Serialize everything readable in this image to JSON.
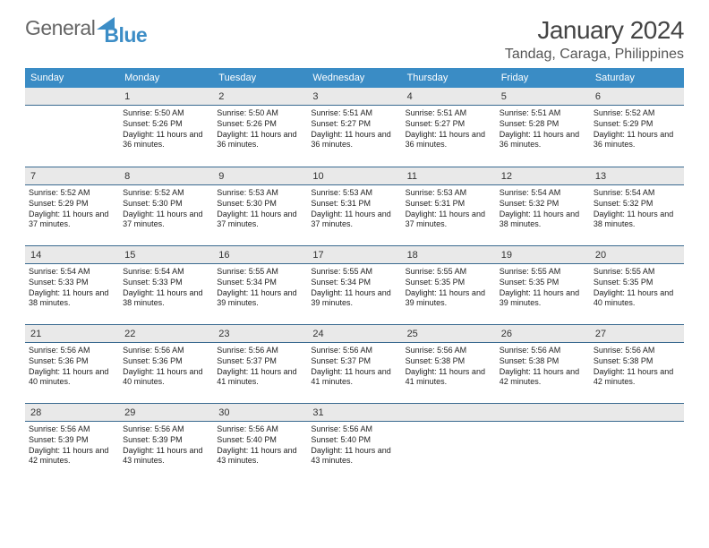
{
  "logo": {
    "left": "General",
    "right": "Blue"
  },
  "header": {
    "title": "January 2024",
    "location": "Tandag, Caraga, Philippines"
  },
  "weekdays": [
    "Sunday",
    "Monday",
    "Tuesday",
    "Wednesday",
    "Thursday",
    "Friday",
    "Saturday"
  ],
  "colors": {
    "header_bg": "#3a8cc5",
    "rule": "#3a6a90",
    "daynum_bg": "#e9e9e9"
  },
  "labels": {
    "sunrise_prefix": "Sunrise: ",
    "sunset_prefix": "Sunset: ",
    "daylight_prefix": "Daylight: "
  },
  "days": [
    {
      "n": "",
      "sunrise": "",
      "sunset": "",
      "daylight": ""
    },
    {
      "n": "1",
      "sunrise": "5:50 AM",
      "sunset": "5:26 PM",
      "daylight": "11 hours and 36 minutes."
    },
    {
      "n": "2",
      "sunrise": "5:50 AM",
      "sunset": "5:26 PM",
      "daylight": "11 hours and 36 minutes."
    },
    {
      "n": "3",
      "sunrise": "5:51 AM",
      "sunset": "5:27 PM",
      "daylight": "11 hours and 36 minutes."
    },
    {
      "n": "4",
      "sunrise": "5:51 AM",
      "sunset": "5:27 PM",
      "daylight": "11 hours and 36 minutes."
    },
    {
      "n": "5",
      "sunrise": "5:51 AM",
      "sunset": "5:28 PM",
      "daylight": "11 hours and 36 minutes."
    },
    {
      "n": "6",
      "sunrise": "5:52 AM",
      "sunset": "5:29 PM",
      "daylight": "11 hours and 36 minutes."
    },
    {
      "n": "7",
      "sunrise": "5:52 AM",
      "sunset": "5:29 PM",
      "daylight": "11 hours and 37 minutes."
    },
    {
      "n": "8",
      "sunrise": "5:52 AM",
      "sunset": "5:30 PM",
      "daylight": "11 hours and 37 minutes."
    },
    {
      "n": "9",
      "sunrise": "5:53 AM",
      "sunset": "5:30 PM",
      "daylight": "11 hours and 37 minutes."
    },
    {
      "n": "10",
      "sunrise": "5:53 AM",
      "sunset": "5:31 PM",
      "daylight": "11 hours and 37 minutes."
    },
    {
      "n": "11",
      "sunrise": "5:53 AM",
      "sunset": "5:31 PM",
      "daylight": "11 hours and 37 minutes."
    },
    {
      "n": "12",
      "sunrise": "5:54 AM",
      "sunset": "5:32 PM",
      "daylight": "11 hours and 38 minutes."
    },
    {
      "n": "13",
      "sunrise": "5:54 AM",
      "sunset": "5:32 PM",
      "daylight": "11 hours and 38 minutes."
    },
    {
      "n": "14",
      "sunrise": "5:54 AM",
      "sunset": "5:33 PM",
      "daylight": "11 hours and 38 minutes."
    },
    {
      "n": "15",
      "sunrise": "5:54 AM",
      "sunset": "5:33 PM",
      "daylight": "11 hours and 38 minutes."
    },
    {
      "n": "16",
      "sunrise": "5:55 AM",
      "sunset": "5:34 PM",
      "daylight": "11 hours and 39 minutes."
    },
    {
      "n": "17",
      "sunrise": "5:55 AM",
      "sunset": "5:34 PM",
      "daylight": "11 hours and 39 minutes."
    },
    {
      "n": "18",
      "sunrise": "5:55 AM",
      "sunset": "5:35 PM",
      "daylight": "11 hours and 39 minutes."
    },
    {
      "n": "19",
      "sunrise": "5:55 AM",
      "sunset": "5:35 PM",
      "daylight": "11 hours and 39 minutes."
    },
    {
      "n": "20",
      "sunrise": "5:55 AM",
      "sunset": "5:35 PM",
      "daylight": "11 hours and 40 minutes."
    },
    {
      "n": "21",
      "sunrise": "5:56 AM",
      "sunset": "5:36 PM",
      "daylight": "11 hours and 40 minutes."
    },
    {
      "n": "22",
      "sunrise": "5:56 AM",
      "sunset": "5:36 PM",
      "daylight": "11 hours and 40 minutes."
    },
    {
      "n": "23",
      "sunrise": "5:56 AM",
      "sunset": "5:37 PM",
      "daylight": "11 hours and 41 minutes."
    },
    {
      "n": "24",
      "sunrise": "5:56 AM",
      "sunset": "5:37 PM",
      "daylight": "11 hours and 41 minutes."
    },
    {
      "n": "25",
      "sunrise": "5:56 AM",
      "sunset": "5:38 PM",
      "daylight": "11 hours and 41 minutes."
    },
    {
      "n": "26",
      "sunrise": "5:56 AM",
      "sunset": "5:38 PM",
      "daylight": "11 hours and 42 minutes."
    },
    {
      "n": "27",
      "sunrise": "5:56 AM",
      "sunset": "5:38 PM",
      "daylight": "11 hours and 42 minutes."
    },
    {
      "n": "28",
      "sunrise": "5:56 AM",
      "sunset": "5:39 PM",
      "daylight": "11 hours and 42 minutes."
    },
    {
      "n": "29",
      "sunrise": "5:56 AM",
      "sunset": "5:39 PM",
      "daylight": "11 hours and 43 minutes."
    },
    {
      "n": "30",
      "sunrise": "5:56 AM",
      "sunset": "5:40 PM",
      "daylight": "11 hours and 43 minutes."
    },
    {
      "n": "31",
      "sunrise": "5:56 AM",
      "sunset": "5:40 PM",
      "daylight": "11 hours and 43 minutes."
    },
    {
      "n": "",
      "sunrise": "",
      "sunset": "",
      "daylight": ""
    },
    {
      "n": "",
      "sunrise": "",
      "sunset": "",
      "daylight": ""
    },
    {
      "n": "",
      "sunrise": "",
      "sunset": "",
      "daylight": ""
    }
  ]
}
